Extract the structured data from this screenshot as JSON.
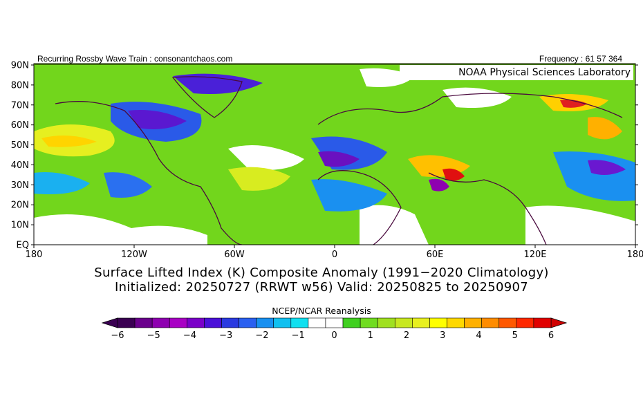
{
  "header": {
    "left": "Recurring Rossby Wave Train : consonantchaos.com",
    "right": "Frequency : 61 57 364"
  },
  "credit": "NOAA Physical Sciences Laboratory",
  "map": {
    "lat_labels": [
      "90N",
      "80N",
      "70N",
      "60N",
      "50N",
      "40N",
      "30N",
      "20N",
      "10N",
      "EQ"
    ],
    "lon_labels": [
      "180",
      "120W",
      "60W",
      "0",
      "60E",
      "120E",
      "180"
    ]
  },
  "title": {
    "line1": "Surface Lifted Index (K) Composite Anomaly (1991−2020 Climatology)",
    "line2": "Initialized: 20250727 (RRWT w56) Valid: 20250825 to 20250907"
  },
  "source": "NCEP/NCAR Reanalysis",
  "colorbar": {
    "ticks": [
      "−6",
      "−5",
      "−4",
      "−3",
      "−2",
      "−1",
      "0",
      "1",
      "2",
      "3",
      "4",
      "5",
      "6"
    ],
    "colors": [
      "#3a0052",
      "#6a008c",
      "#8e00b0",
      "#a800c4",
      "#7a00c8",
      "#4a10d8",
      "#2a3ae0",
      "#2a60f0",
      "#1890f0",
      "#10c0f0",
      "#10e0f0",
      "#ffffff",
      "#ffffff",
      "#40d020",
      "#70dc20",
      "#a0e020",
      "#c8e820",
      "#e8f020",
      "#ffff00",
      "#ffd800",
      "#ffb000",
      "#ff8c00",
      "#ff5800",
      "#ff2800",
      "#e00000"
    ],
    "low_end_color": "#3a0052",
    "high_end_color": "#d00000"
  }
}
